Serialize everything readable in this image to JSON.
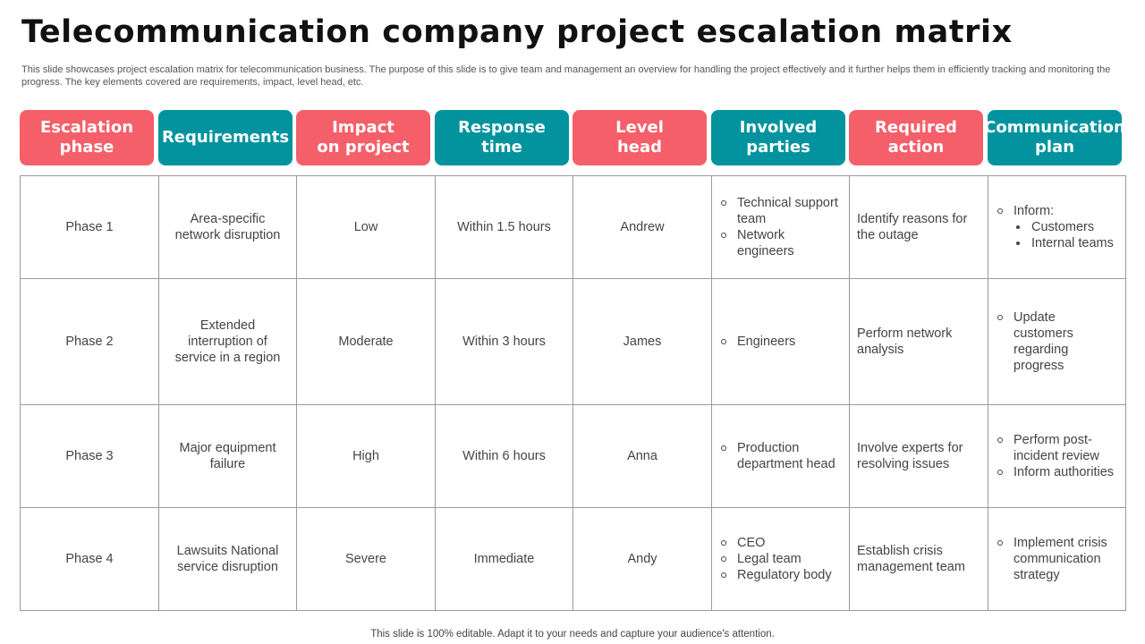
{
  "title": "Telecommunication company project escalation matrix",
  "subtitle": "This slide showcases project escalation matrix for telecommunication business. The purpose of this slide is to give team and management an overview for handling the project effectively  and it further helps them in efficiently tracking and monitoring the progress. The key elements covered are requirements, impact, level head, etc.",
  "colors": {
    "pink": "#f45f6a",
    "teal": "#03939e",
    "low": "#1c9e5a",
    "moderate": "#03939e",
    "high": "#e02020",
    "severe": "#e02020"
  },
  "headers": [
    "Escalation\nphase",
    "Requirements",
    "Impact\non project",
    "Response\ntime",
    "Level\nhead",
    "Involved\nparties",
    "Required\naction",
    "Communication\nplan"
  ],
  "rows": [
    {
      "phase": "Phase 1",
      "requirement": "Area-specific network disruption",
      "impact": "Low",
      "response": "Within 1.5 hours",
      "head": "Andrew",
      "parties": [
        "Technical support team",
        "Network engineers"
      ],
      "action": "Identify reasons for the outage",
      "plan": [
        "Inform:"
      ],
      "plan_sub": [
        "Customers",
        "Internal teams"
      ]
    },
    {
      "phase": "Phase 2",
      "requirement": "Extended interruption of service in a region",
      "impact": "Moderate",
      "response": "Within 3 hours",
      "head": "James",
      "parties": [
        "Engineers"
      ],
      "action": "Perform network analysis",
      "plan": [
        "Update customers regarding progress"
      ]
    },
    {
      "phase": "Phase 3",
      "requirement": "Major equipment failure",
      "impact": "High",
      "response": "Within 6 hours",
      "head": "Anna",
      "parties": [
        "Production department head"
      ],
      "action": "Involve experts for resolving issues",
      "plan": [
        "Perform post-incident review",
        "Inform authorities"
      ]
    },
    {
      "phase": "Phase 4",
      "requirement": "Lawsuits National service disruption",
      "impact": "Severe",
      "response": "Immediate",
      "head": "Andy",
      "parties": [
        "CEO",
        "Legal team",
        "Regulatory body"
      ],
      "action": "Establish crisis management team",
      "plan": [
        "Implement crisis communication strategy"
      ]
    }
  ],
  "footer": "This slide is 100% editable. Adapt it to your needs and capture your audience's attention."
}
